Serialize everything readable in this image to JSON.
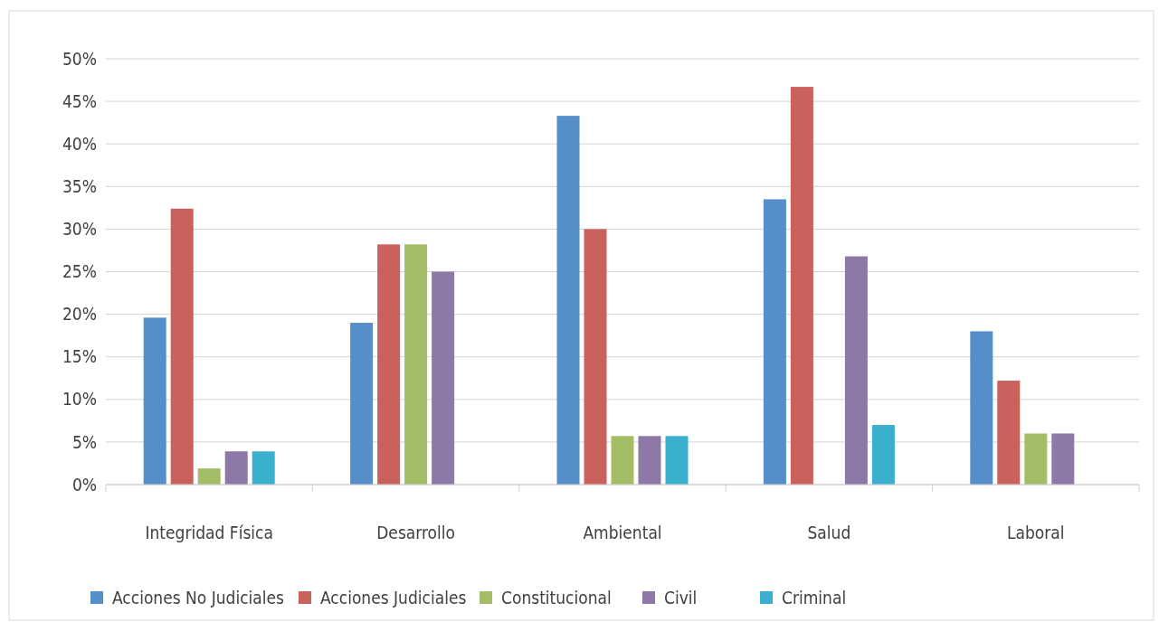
{
  "chart_data": {
    "type": "bar",
    "categories": [
      "Integridad Física",
      "Desarrollo",
      "Ambiental",
      "Salud",
      "Laboral"
    ],
    "series": [
      {
        "name": "Acciones No Judiciales",
        "color": "#558ec8",
        "values": [
          19.6,
          19.0,
          43.3,
          33.5,
          18.0
        ]
      },
      {
        "name": "Acciones Judiciales",
        "color": "#cb615d",
        "values": [
          32.4,
          28.2,
          30.0,
          46.7,
          12.2
        ]
      },
      {
        "name": "Constitucional",
        "color": "#a3bc66",
        "values": [
          1.9,
          28.2,
          5.7,
          0,
          6.0
        ]
      },
      {
        "name": "Civil",
        "color": "#8e78a8",
        "values": [
          3.9,
          25.0,
          5.7,
          26.8,
          6.0
        ]
      },
      {
        "name": "Criminal",
        "color": "#3aafce",
        "values": [
          3.9,
          0,
          5.7,
          7.0,
          0
        ]
      }
    ],
    "ylim": [
      0,
      50
    ],
    "yticks": [
      {
        "value": 0,
        "label": "0%"
      },
      {
        "value": 5,
        "label": "5%"
      },
      {
        "value": 10,
        "label": "10%"
      },
      {
        "value": 15,
        "label": "15%"
      },
      {
        "value": 20,
        "label": "20%"
      },
      {
        "value": 25,
        "label": "25%"
      },
      {
        "value": 30,
        "label": "30%"
      },
      {
        "value": 35,
        "label": "35%"
      },
      {
        "value": 40,
        "label": "40%"
      },
      {
        "value": 45,
        "label": "45%"
      },
      {
        "value": 50,
        "label": "50%"
      }
    ],
    "grid": "y",
    "legend": "bottom"
  }
}
